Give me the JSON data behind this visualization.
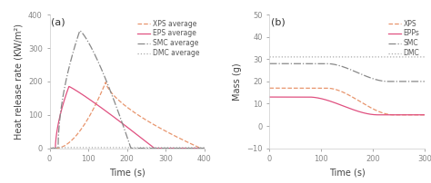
{
  "panel_a": {
    "label": "(a)",
    "xlabel": "Time (s)",
    "ylabel": "Heat release rate (KW/m²)",
    "xlim": [
      0,
      400
    ],
    "ylim": [
      0,
      400
    ],
    "xticks": [
      0,
      100,
      200,
      300,
      400
    ],
    "yticks": [
      0,
      100,
      200,
      300,
      400
    ],
    "series": [
      {
        "name": "XPS average",
        "color": "#e8956d",
        "linestyle": "dashed",
        "linewidth": 0.9,
        "peak_x": 145,
        "peak_y": 198,
        "start_x": 18,
        "end_x": 390,
        "rise_exp": 1.8,
        "fall_exp": 0.65
      },
      {
        "name": "EPS average",
        "color": "#e05080",
        "linestyle": "solid",
        "linewidth": 0.9,
        "peak_x": 50,
        "peak_y": 185,
        "start_x": 15,
        "end_x": 270,
        "rise_exp": 0.6,
        "fall_exp": 1.1
      },
      {
        "name": "SMC average",
        "color": "#888888",
        "linestyle": "dashdot",
        "linewidth": 0.9,
        "peak_x": 78,
        "peak_y": 352,
        "start_x": 22,
        "end_x": 210,
        "rise_exp": 0.55,
        "fall_exp": 1.3
      },
      {
        "name": "DMC average",
        "color": "#aaaaaa",
        "linestyle": "dotted",
        "linewidth": 0.9,
        "flat_value": 2
      }
    ]
  },
  "panel_b": {
    "label": "(b)",
    "xlabel": "Time (s)",
    "ylabel": "Mass (g)",
    "xlim": [
      0,
      300
    ],
    "ylim": [
      -10,
      50
    ],
    "xticks": [
      0,
      100,
      200,
      300
    ],
    "yticks": [
      -10,
      0,
      10,
      20,
      30,
      40,
      50
    ],
    "series": [
      {
        "name": "XPS",
        "color": "#e8956d",
        "linestyle": "dashed",
        "linewidth": 0.9,
        "start": 17,
        "end": 5,
        "drop_start": 110,
        "drop_end": 240
      },
      {
        "name": "EPPs",
        "color": "#e05080",
        "linestyle": "solid",
        "linewidth": 0.9,
        "start": 13,
        "end": 5,
        "drop_start": 75,
        "drop_end": 210
      },
      {
        "name": "SMC",
        "color": "#888888",
        "linestyle": "dashdot",
        "linewidth": 0.9,
        "start": 28,
        "end": 20,
        "drop_start": 110,
        "drop_end": 230
      },
      {
        "name": "DMC",
        "color": "#aaaaaa",
        "linestyle": "dotted",
        "linewidth": 0.9,
        "flat_value": 31
      }
    ]
  },
  "background_color": "#ffffff",
  "axes_color": "#cccccc",
  "tick_color": "#888888",
  "font_size": 6.5,
  "label_fontsize": 7,
  "legend_fontsize": 5.5
}
